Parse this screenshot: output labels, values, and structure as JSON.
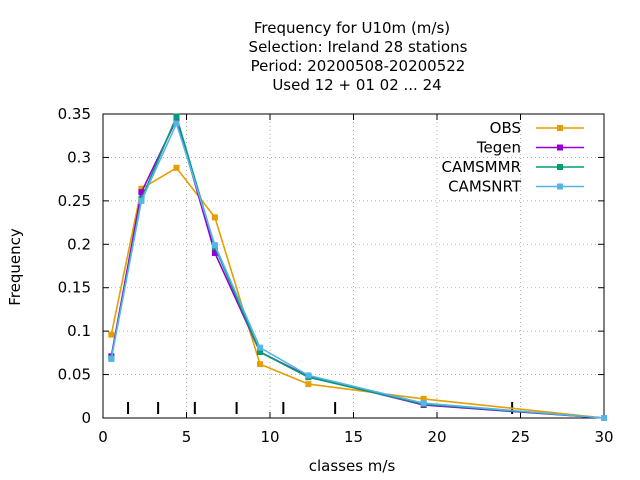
{
  "chart_data": {
    "type": "line",
    "title_lines": [
      "Frequency  for U10m (m/s)",
      "Selection: Ireland      28 stations",
      "Period: 20200508-20200522",
      "Used  12 + 01 02 ... 24"
    ],
    "xlabel": "classes m/s",
    "ylabel": "Frequency",
    "xlim": [
      0,
      30
    ],
    "ylim": [
      0,
      0.35
    ],
    "x_ticks": [
      "0",
      "5",
      "10",
      "15",
      "20",
      "25",
      "30"
    ],
    "y_ticks": [
      "0",
      "0.05",
      "0.1",
      "0.15",
      "0.2",
      "0.25",
      "0.3",
      "0.35"
    ],
    "grid": true,
    "legend_position": "top-right",
    "class_boundaries": [
      1.5,
      3.3,
      5.5,
      8.0,
      10.8,
      13.9,
      24.5
    ],
    "series": [
      {
        "name": "OBS",
        "color": "#e69f00",
        "x": [
          0.5,
          2.3,
          4.4,
          6.7,
          9.4,
          12.3,
          19.2,
          30
        ],
        "y": [
          0.096,
          0.264,
          0.288,
          0.231,
          0.062,
          0.039,
          0.022,
          0.0
        ]
      },
      {
        "name": "Tegen",
        "color": "#9400d3",
        "x": [
          0.5,
          2.3,
          4.4,
          6.7,
          9.4,
          12.3,
          19.2,
          30
        ],
        "y": [
          0.071,
          0.26,
          0.344,
          0.19,
          0.076,
          0.048,
          0.015,
          0.0
        ]
      },
      {
        "name": "CAMSMMR",
        "color": "#009e73",
        "x": [
          0.5,
          2.3,
          4.4,
          6.7,
          9.4,
          12.3,
          19.2,
          30
        ],
        "y": [
          0.069,
          0.252,
          0.347,
          0.197,
          0.076,
          0.047,
          0.016,
          0.0
        ]
      },
      {
        "name": "CAMSNRT",
        "color": "#56b4e9",
        "x": [
          0.5,
          2.3,
          4.4,
          6.7,
          9.4,
          12.3,
          19.2,
          30
        ],
        "y": [
          0.068,
          0.25,
          0.339,
          0.199,
          0.081,
          0.049,
          0.017,
          0.0
        ]
      }
    ]
  }
}
